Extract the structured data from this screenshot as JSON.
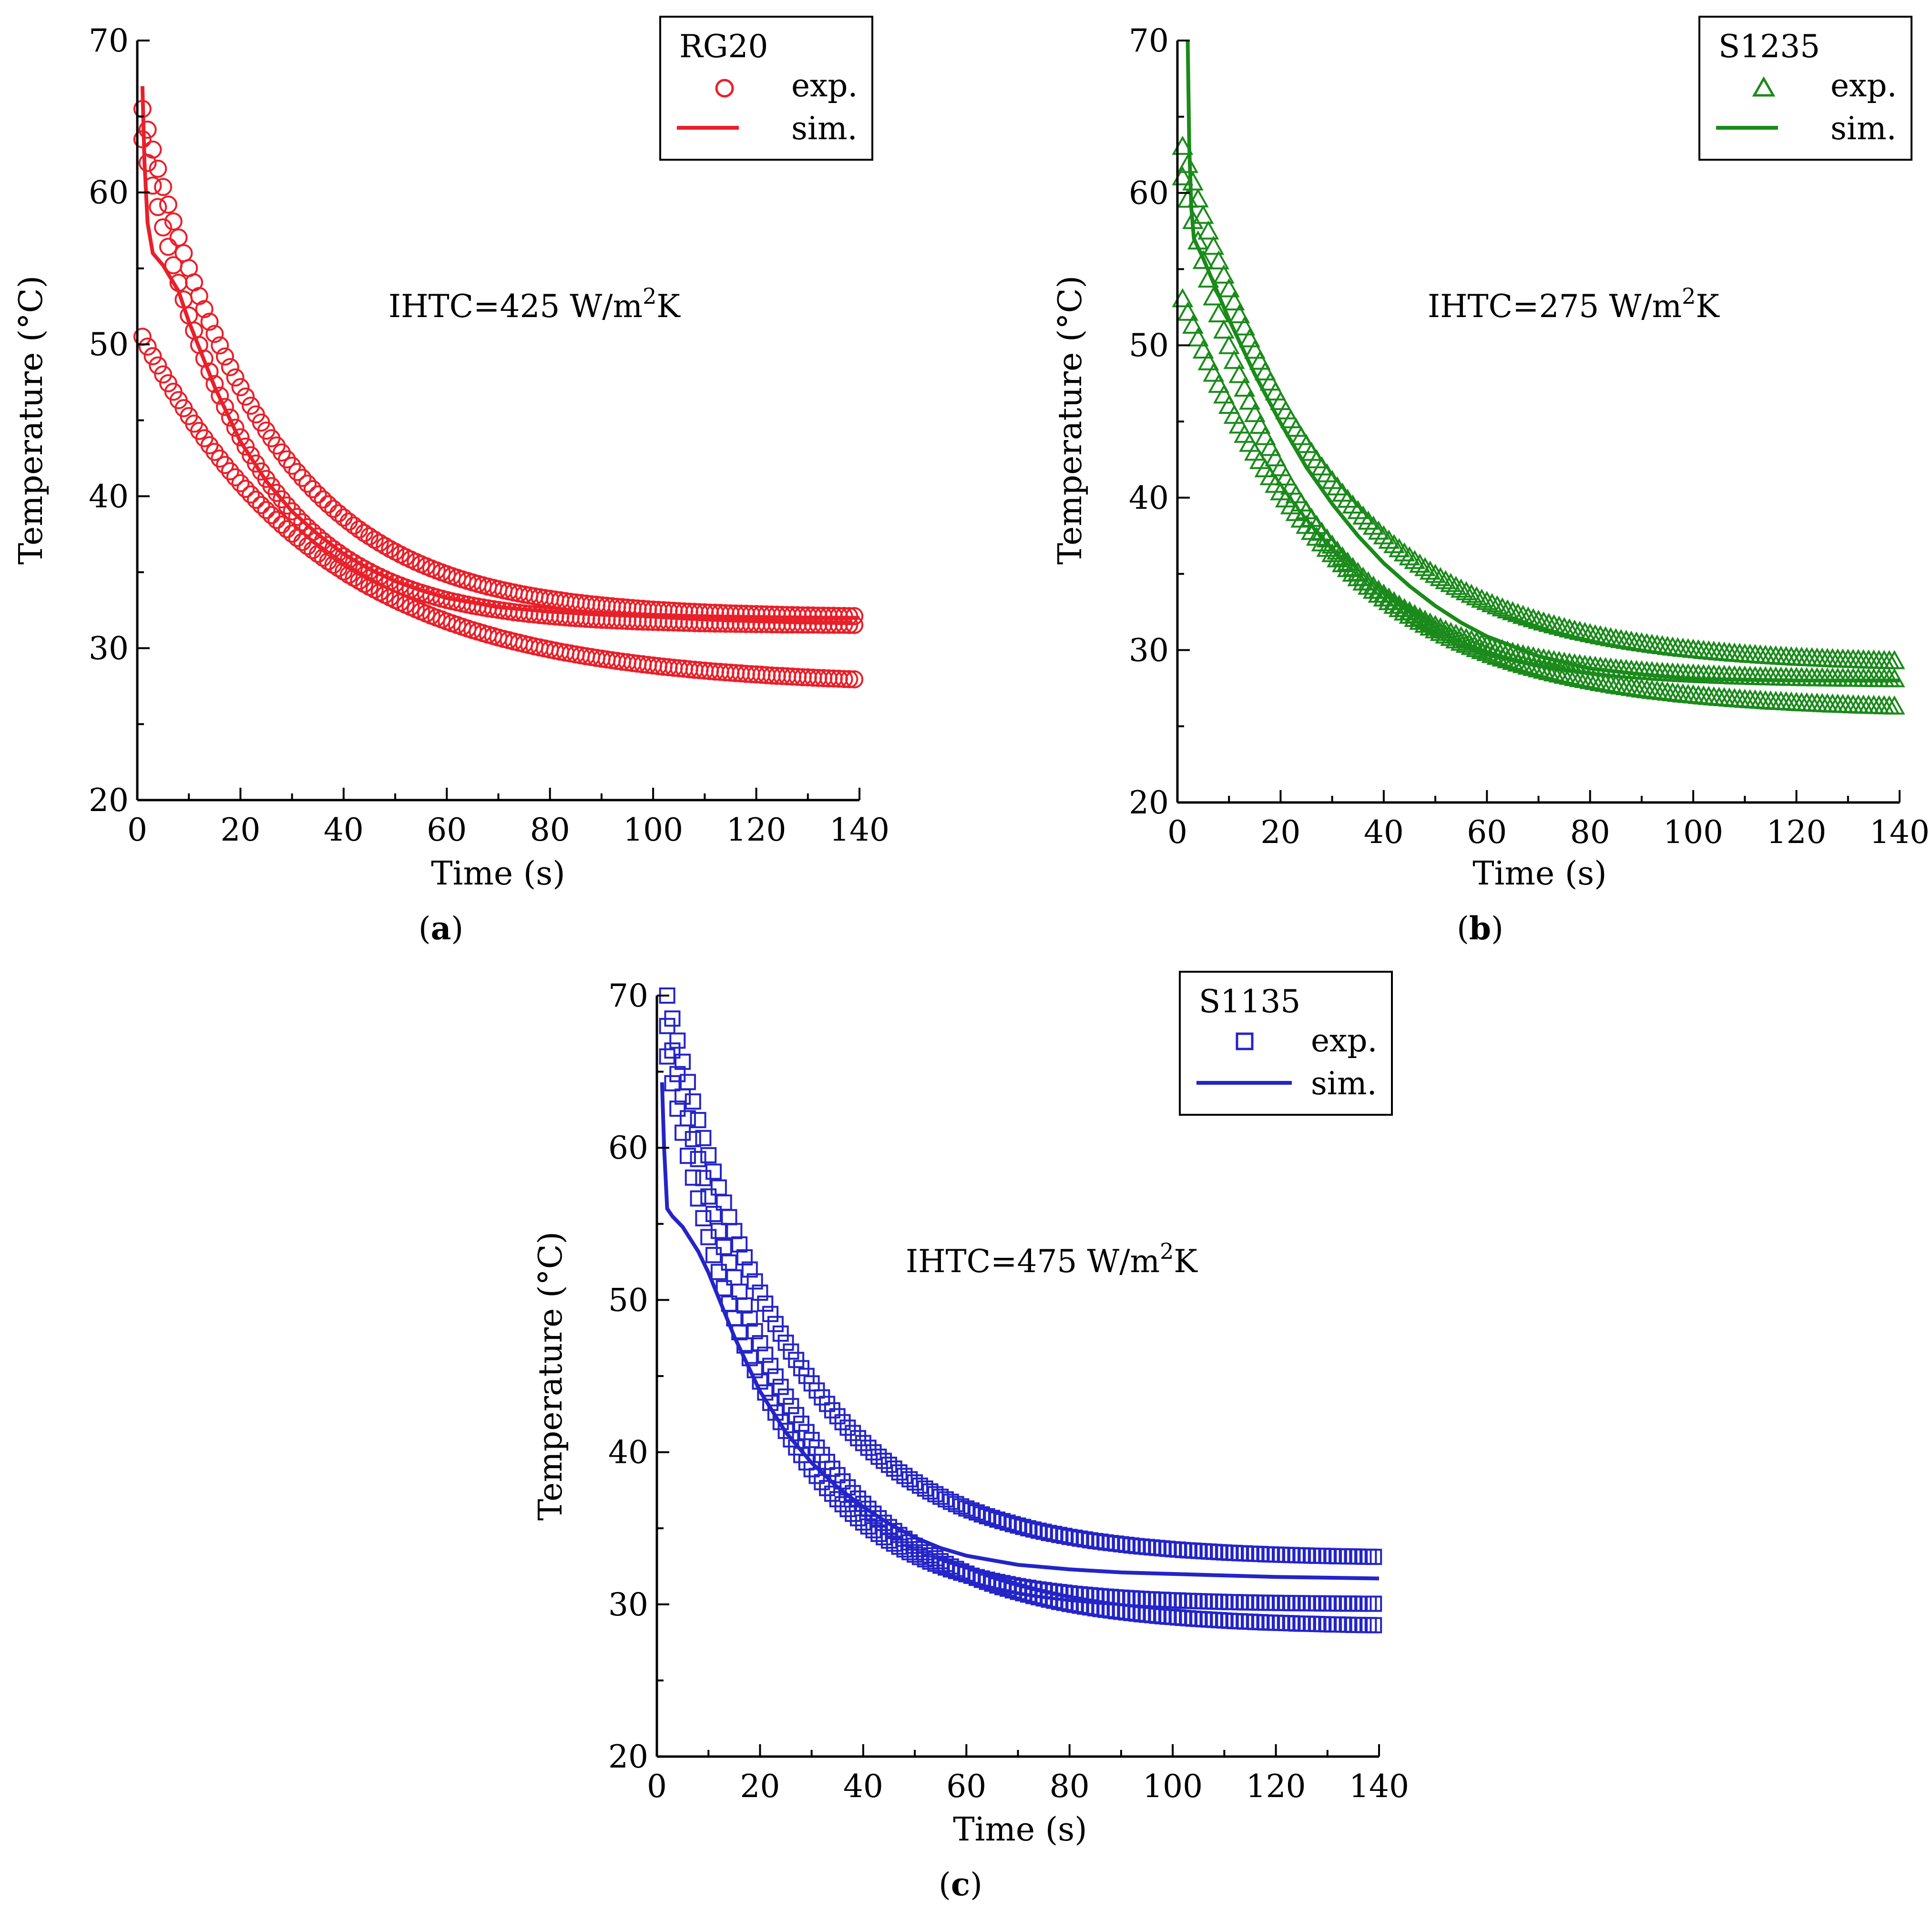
{
  "panels": [
    {
      "id": "a",
      "caption": "(a)",
      "caption_letter": "a",
      "annotation": {
        "prefix": "IHTC=425 W/m",
        "sup": "2",
        "suffix": "K"
      },
      "legend": {
        "title": "RG20",
        "exp_label": "exp.",
        "sim_label": "sim."
      },
      "color": "#e8202a",
      "marker": "circle"
    },
    {
      "id": "b",
      "caption": "(b)",
      "caption_letter": "b",
      "annotation": {
        "prefix": "IHTC=275 W/m",
        "sup": "2",
        "suffix": "K"
      },
      "legend": {
        "title": "S1235",
        "exp_label": "exp.",
        "sim_label": "sim."
      },
      "color": "#1a8a1a",
      "marker": "triangle"
    },
    {
      "id": "c",
      "caption": "(c)",
      "caption_letter": "c",
      "annotation": {
        "prefix": "IHTC=475 W/m",
        "sup": "2",
        "suffix": "K"
      },
      "legend": {
        "title": "S1135",
        "exp_label": "exp.",
        "sim_label": "sim."
      },
      "color": "#2424c8",
      "marker": "square"
    }
  ],
  "chart_data": [
    {
      "type": "scatter",
      "title": "",
      "xlabel": "Time (s)",
      "ylabel": "Temperature (°C)",
      "xlim": [
        0,
        140
      ],
      "ylim": [
        20,
        70
      ],
      "xticks": [
        0,
        20,
        40,
        60,
        80,
        100,
        120,
        140
      ],
      "yticks": [
        20,
        30,
        40,
        50,
        60,
        70
      ],
      "legend_position": "top-right",
      "grid": false,
      "series": [
        {
          "name": "exp.",
          "kind": "scatter",
          "model": {
            "T0": 65.5,
            "Tinf": 32.0,
            "tau": 24,
            "start": 1
          }
        },
        {
          "name": "exp.",
          "kind": "scatter",
          "model": {
            "T0": 50.5,
            "Tinf": 27.5,
            "tau": 35,
            "start": 1
          }
        },
        {
          "name": "exp.",
          "kind": "scatter",
          "model": {
            "T0": 63.5,
            "Tinf": 31.5,
            "tau": 20,
            "start": 1
          }
        },
        {
          "name": "sim.",
          "kind": "line",
          "points": [
            [
              1,
              67.0
            ],
            [
              1.4,
              62.0
            ],
            [
              2,
              58.0
            ],
            [
              3,
              56.0
            ],
            [
              5,
              55.2
            ],
            [
              8,
              53.5
            ],
            [
              10,
              51.5
            ],
            [
              15,
              47.2
            ],
            [
              20,
              43.6
            ],
            [
              25,
              41.0
            ],
            [
              30,
              39.0
            ],
            [
              35,
              37.5
            ],
            [
              40,
              36.2
            ],
            [
              45,
              35.2
            ],
            [
              50,
              34.4
            ],
            [
              55,
              33.8
            ],
            [
              60,
              33.3
            ],
            [
              70,
              32.7
            ],
            [
              80,
              32.4
            ],
            [
              90,
              32.2
            ],
            [
              100,
              32.1
            ],
            [
              120,
              32.0
            ],
            [
              140,
              32.0
            ]
          ]
        }
      ]
    },
    {
      "type": "scatter",
      "title": "",
      "xlabel": "Time (s)",
      "ylabel": "Temperature (°C)",
      "xlim": [
        0,
        140
      ],
      "ylim": [
        20,
        70
      ],
      "xticks": [
        0,
        20,
        40,
        60,
        80,
        100,
        120,
        140
      ],
      "yticks": [
        20,
        30,
        40,
        50,
        60,
        70
      ],
      "legend_position": "top-right",
      "grid": false,
      "series": [
        {
          "name": "exp.",
          "kind": "scatter",
          "model": {
            "T0": 63.0,
            "Tinf": 29.0,
            "tau": 28,
            "start": 1
          }
        },
        {
          "name": "exp.",
          "kind": "scatter",
          "model": {
            "T0": 53.0,
            "Tinf": 26.0,
            "tau": 30,
            "start": 1
          }
        },
        {
          "name": "exp.",
          "kind": "scatter",
          "model": {
            "T0": 61.0,
            "Tinf": 28.0,
            "tau": 22,
            "start": 1
          }
        },
        {
          "name": "sim.",
          "kind": "line",
          "points": [
            [
              2,
              70.0
            ],
            [
              2.3,
              63.0
            ],
            [
              2.7,
              59.0
            ],
            [
              3.2,
              57.0
            ],
            [
              5,
              55.7
            ],
            [
              10,
              51.7
            ],
            [
              15,
              48.1
            ],
            [
              20,
              44.9
            ],
            [
              25,
              42.0
            ],
            [
              30,
              39.6
            ],
            [
              35,
              37.5
            ],
            [
              40,
              35.7
            ],
            [
              45,
              34.2
            ],
            [
              50,
              32.9
            ],
            [
              55,
              31.8
            ],
            [
              60,
              30.9
            ],
            [
              70,
              29.6
            ],
            [
              80,
              28.8
            ],
            [
              90,
              28.4
            ],
            [
              100,
              28.1
            ],
            [
              120,
              28.0
            ],
            [
              140,
              28.0
            ]
          ]
        }
      ]
    },
    {
      "type": "scatter",
      "title": "",
      "xlabel": "Time (s)",
      "ylabel": "Temperature (°C)",
      "xlim": [
        0,
        140
      ],
      "ylim": [
        20,
        70
      ],
      "xticks": [
        0,
        20,
        40,
        60,
        80,
        100,
        120,
        140
      ],
      "yticks": [
        20,
        30,
        40,
        50,
        60,
        70
      ],
      "legend_position": "top-right",
      "grid": false,
      "series": [
        {
          "name": "exp.",
          "kind": "scatter",
          "model": {
            "T0": 70.0,
            "Tinf": 33.0,
            "tau": 24,
            "start": 2
          }
        },
        {
          "name": "exp.",
          "kind": "scatter",
          "model": {
            "T0": 68.0,
            "Tinf": 28.5,
            "tau": 24,
            "start": 2
          }
        },
        {
          "name": "exp.",
          "kind": "scatter",
          "model": {
            "T0": 66.0,
            "Tinf": 30.0,
            "tau": 20,
            "start": 2
          }
        },
        {
          "name": "sim.",
          "kind": "line",
          "points": [
            [
              1,
              64.3
            ],
            [
              1.4,
              60.0
            ],
            [
              2,
              56.0
            ],
            [
              3,
              55.5
            ],
            [
              5,
              54.8
            ],
            [
              8,
              53.2
            ],
            [
              10,
              51.8
            ],
            [
              15,
              47.6
            ],
            [
              20,
              44.0
            ],
            [
              25,
              41.3
            ],
            [
              30,
              39.3
            ],
            [
              35,
              37.7
            ],
            [
              40,
              36.4
            ],
            [
              45,
              35.3
            ],
            [
              50,
              34.4
            ],
            [
              55,
              33.7
            ],
            [
              60,
              33.2
            ],
            [
              70,
              32.6
            ],
            [
              80,
              32.3
            ],
            [
              90,
              32.1
            ],
            [
              100,
              32.0
            ],
            [
              120,
              31.8
            ],
            [
              140,
              31.7
            ]
          ]
        }
      ]
    }
  ]
}
